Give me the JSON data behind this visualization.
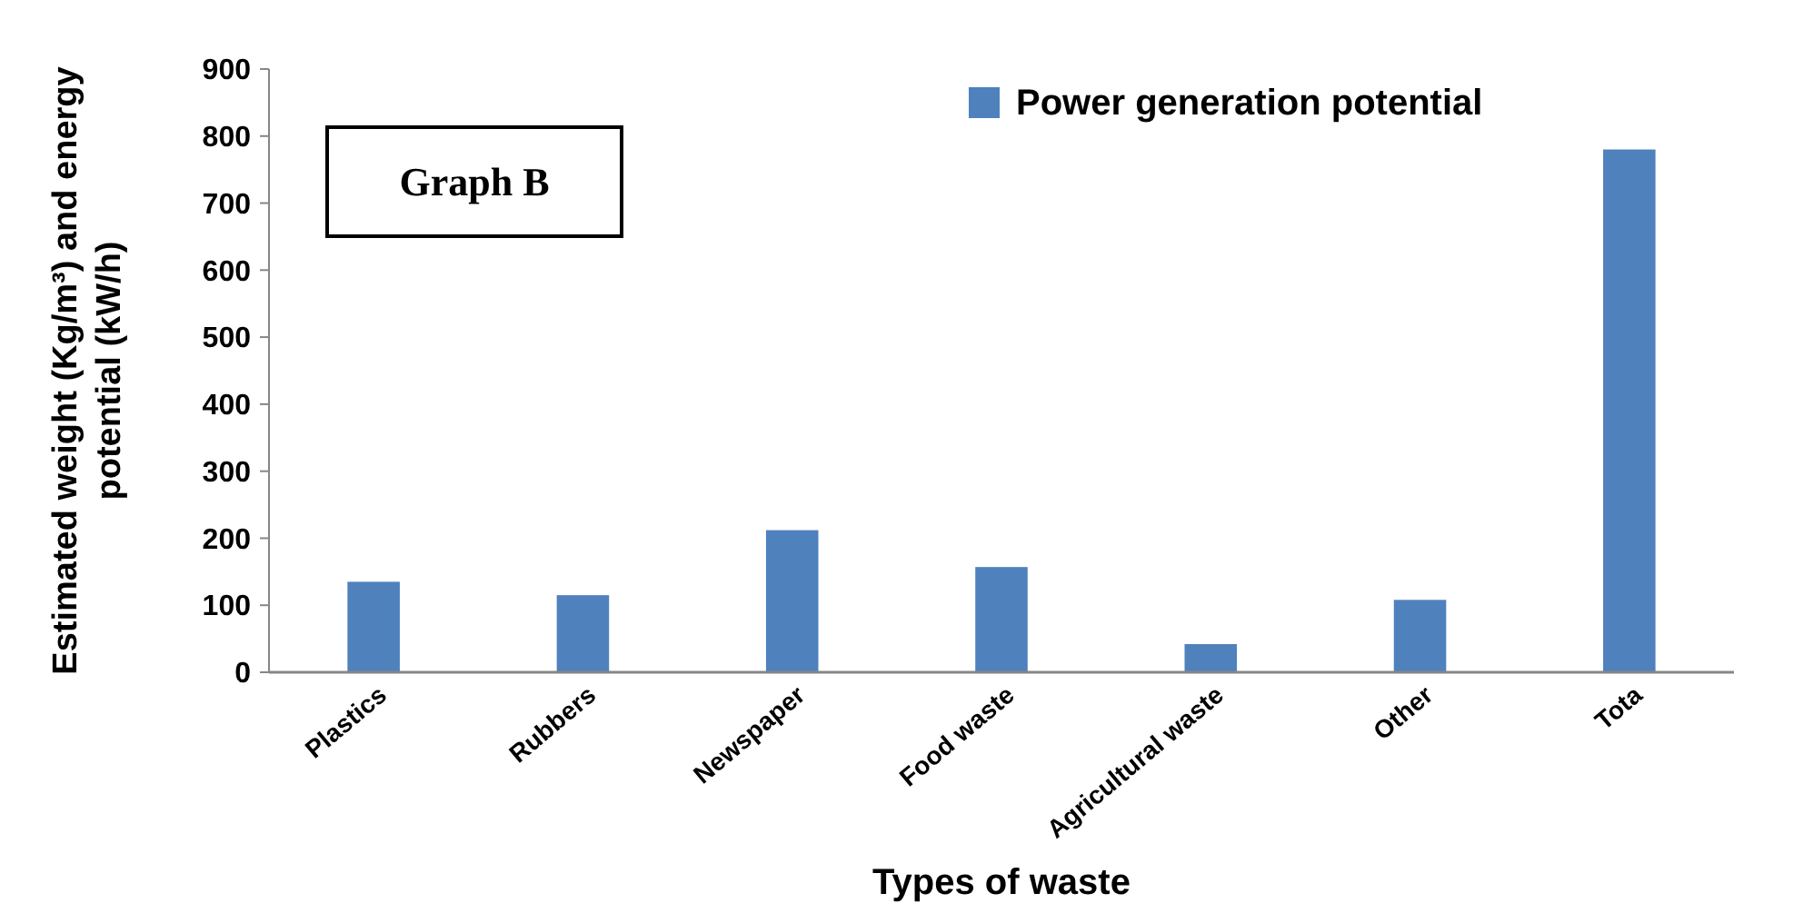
{
  "chart_data": {
    "type": "bar",
    "xlabel": "Types of waste",
    "ylabel": "Estimated weight (Kg/m³) and energy\npotential (kW/h)",
    "categories": [
      "Plastics",
      "Rubbers",
      "Newspaper",
      "Food waste",
      "Agricultural waste",
      "Other",
      "Tota"
    ],
    "series": [
      {
        "name": "Power generation potential",
        "color": "#4f81bd",
        "values": [
          135,
          115,
          212,
          157,
          42,
          108,
          780
        ]
      }
    ],
    "ylim": [
      0,
      900
    ],
    "yticks": [
      0,
      100,
      200,
      300,
      400,
      500,
      600,
      700,
      800,
      900
    ],
    "legend": "top right",
    "annotations": [
      "Graph B"
    ]
  }
}
